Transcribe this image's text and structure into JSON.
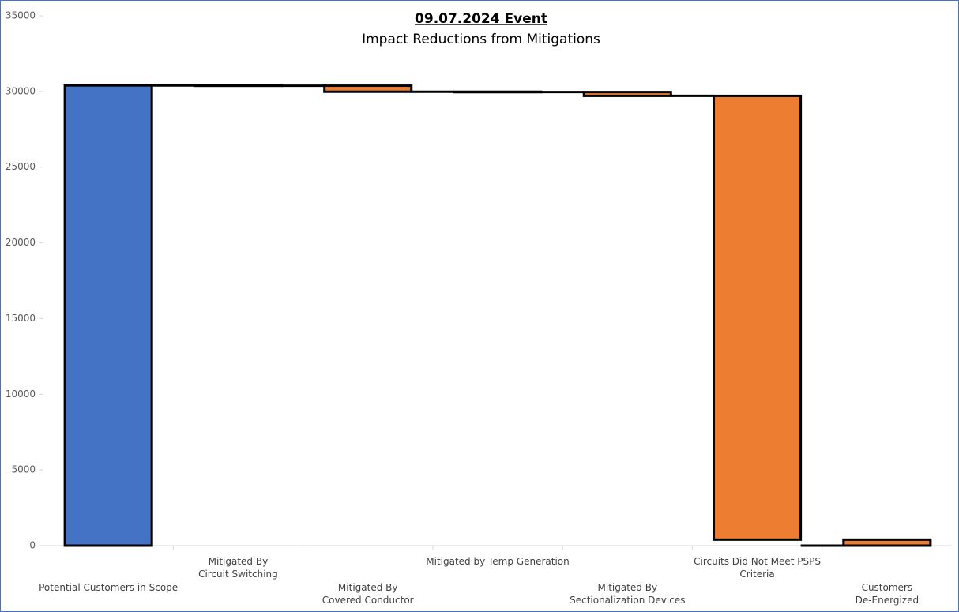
{
  "chart_data": {
    "type": "waterfall",
    "title": "09.07.2024 Event",
    "subtitle": "Impact Reductions from Mitigations",
    "categories": [
      "Potential Customers in Scope",
      "Mitigated By\nCircuit Switching",
      "Mitigated By\nCovered Conductor",
      "Mitigated by Temp Generation",
      "Mitigated By\nSectionalization Devices",
      "Circuits Did Not Meet PSPS Criteria",
      "Customers\nDe-Energized"
    ],
    "values": [
      30400,
      -20,
      -400,
      -20,
      -250,
      -29310,
      400
    ],
    "measure": [
      "absolute",
      "relative",
      "relative",
      "relative",
      "relative",
      "relative",
      "total"
    ],
    "colors": [
      "#4472c4",
      "#ed7d31",
      "#ed7d31",
      "#ed7d31",
      "#ed7d31",
      "#ed7d31",
      "#ed7d31"
    ],
    "ylim": [
      0,
      35000
    ],
    "yticks": [
      0,
      5000,
      10000,
      15000,
      20000,
      25000,
      30000,
      35000
    ]
  }
}
